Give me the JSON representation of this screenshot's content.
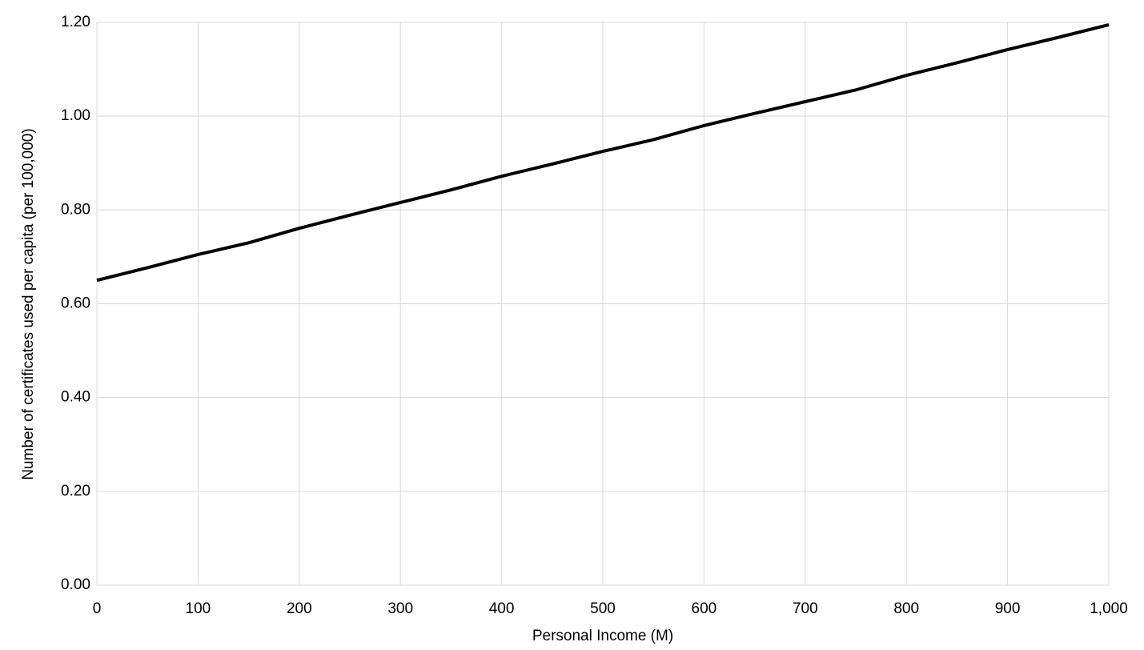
{
  "chart_data": {
    "type": "line",
    "x_label": "Personal Income (M)",
    "y_label": "Number of certificates used per capita (per 100,000)",
    "x": [
      0,
      50,
      100,
      150,
      200,
      250,
      300,
      350,
      400,
      450,
      500,
      550,
      600,
      650,
      700,
      750,
      800,
      850,
      900,
      950,
      1000
    ],
    "series": [
      {
        "color": "#000000",
        "values": [
          0.65,
          0.677,
          0.705,
          0.73,
          0.761,
          0.789,
          0.816,
          0.843,
          0.872,
          0.898,
          0.925,
          0.95,
          0.98,
          1.006,
          1.031,
          1.056,
          1.087,
          1.114,
          1.142,
          1.168,
          1.195
        ]
      }
    ],
    "xlim": [
      0,
      1000
    ],
    "xticks": [
      0,
      100,
      200,
      300,
      400,
      500,
      600,
      700,
      800,
      900,
      {
        "value": 1000,
        "label": "1,000"
      }
    ],
    "ylim": [
      0,
      1.2
    ],
    "yticks": [
      {
        "value": 0,
        "label": "0.00"
      },
      {
        "value": 0.2,
        "label": "0.20"
      },
      {
        "value": 0.4,
        "label": "0.40"
      },
      {
        "value": 0.6,
        "label": "0.60"
      },
      {
        "value": 0.8,
        "label": "0.80"
      },
      {
        "value": 1.0,
        "label": "1.00"
      },
      {
        "value": 1.2,
        "label": "1.20"
      }
    ],
    "grid": true
  }
}
